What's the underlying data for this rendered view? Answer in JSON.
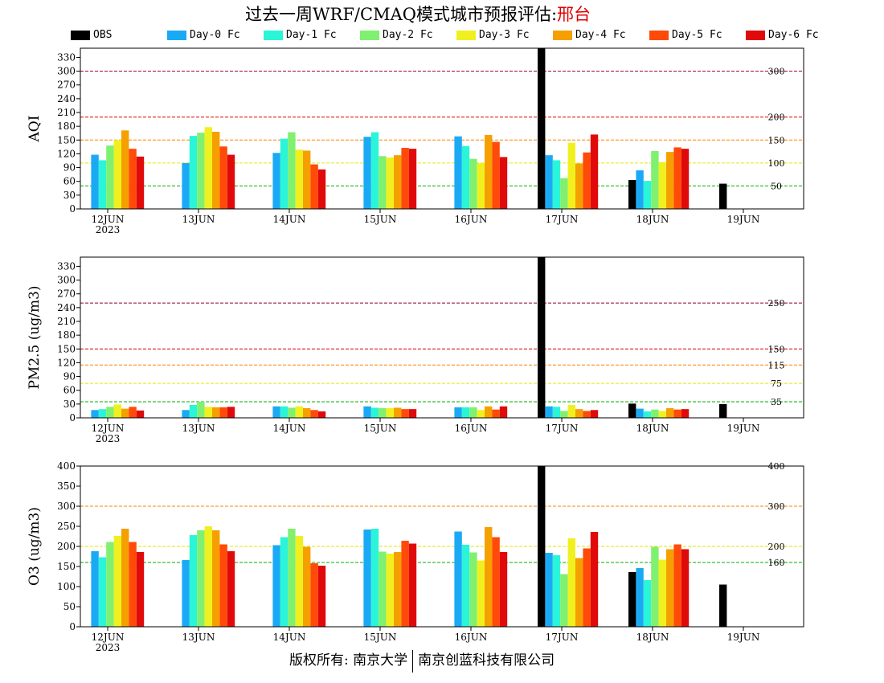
{
  "title": {
    "prefix": "过去一周WRF/CMAQ模式城市预报评估:",
    "city": "邢台"
  },
  "legend": [
    {
      "label": "OBS",
      "color": "#000000"
    },
    {
      "label": "Day-0 Fc",
      "color": "#1aaaf5"
    },
    {
      "label": "Day-1 Fc",
      "color": "#2af5d8"
    },
    {
      "label": "Day-2 Fc",
      "color": "#80f070"
    },
    {
      "label": "Day-3 Fc",
      "color": "#f0f020"
    },
    {
      "label": "Day-4 Fc",
      "color": "#f5a000"
    },
    {
      "label": "Day-5 Fc",
      "color": "#ff4a0a"
    },
    {
      "label": "Day-6 Fc",
      "color": "#e00a0a"
    }
  ],
  "footer": {
    "left": "版权所有: 南京大学",
    "right": "南京创蓝科技有限公司"
  },
  "chart_data": [
    {
      "type": "bar",
      "ylabel": "AQI",
      "ylim": [
        0,
        350
      ],
      "yticks": [
        0,
        30,
        60,
        90,
        120,
        150,
        180,
        210,
        240,
        270,
        300,
        330
      ],
      "x_dates": [
        "12JUN",
        "13JUN",
        "14JUN",
        "15JUN",
        "16JUN",
        "17JUN",
        "18JUN",
        "19JUN"
      ],
      "year": "2023",
      "thresholds": [
        {
          "value": 50,
          "label": "50",
          "color": "#00b000"
        },
        {
          "value": 100,
          "label": "100",
          "color": "#e6e600"
        },
        {
          "value": 150,
          "label": "150",
          "color": "#ff8000"
        },
        {
          "value": 200,
          "label": "200",
          "color": "#e00000"
        },
        {
          "value": 300,
          "label": "300",
          "color": "#900030"
        }
      ],
      "series": [
        {
          "name": "OBS",
          "values": [
            null,
            null,
            null,
            null,
            null,
            350,
            63,
            55
          ]
        },
        {
          "name": "Day-0 Fc",
          "values": [
            118,
            100,
            122,
            157,
            158,
            117,
            84,
            null
          ]
        },
        {
          "name": "Day-1 Fc",
          "values": [
            106,
            159,
            153,
            167,
            137,
            106,
            61,
            null
          ]
        },
        {
          "name": "Day-2 Fc",
          "values": [
            138,
            166,
            167,
            115,
            109,
            67,
            126,
            null
          ]
        },
        {
          "name": "Day-3 Fc",
          "values": [
            150,
            178,
            129,
            112,
            100,
            144,
            102,
            null
          ]
        },
        {
          "name": "Day-4 Fc",
          "values": [
            171,
            168,
            127,
            117,
            161,
            99,
            124,
            null
          ]
        },
        {
          "name": "Day-5 Fc",
          "values": [
            131,
            136,
            97,
            133,
            146,
            123,
            134,
            null
          ]
        },
        {
          "name": "Day-6 Fc",
          "values": [
            114,
            118,
            86,
            131,
            113,
            162,
            131,
            null
          ]
        }
      ]
    },
    {
      "type": "bar",
      "ylabel": "PM2.5 (ug/m3)",
      "ylim": [
        0,
        350
      ],
      "yticks": [
        0,
        30,
        60,
        90,
        120,
        150,
        180,
        210,
        240,
        270,
        300,
        330
      ],
      "x_dates": [
        "12JUN",
        "13JUN",
        "14JUN",
        "15JUN",
        "16JUN",
        "17JUN",
        "18JUN",
        "19JUN"
      ],
      "year": "2023",
      "thresholds": [
        {
          "value": 35,
          "label": "35",
          "color": "#00b000"
        },
        {
          "value": 75,
          "label": "75",
          "color": "#e6e600"
        },
        {
          "value": 115,
          "label": "115",
          "color": "#ff8000"
        },
        {
          "value": 150,
          "label": "150",
          "color": "#e00000"
        },
        {
          "value": 250,
          "label": "250",
          "color": "#900030"
        }
      ],
      "series": [
        {
          "name": "OBS",
          "values": [
            null,
            null,
            null,
            null,
            null,
            350,
            31,
            30
          ]
        },
        {
          "name": "Day-0 Fc",
          "values": [
            17,
            17,
            25,
            25,
            23,
            25,
            20,
            null
          ]
        },
        {
          "name": "Day-1 Fc",
          "values": [
            19,
            28,
            25,
            22,
            23,
            24,
            14,
            null
          ]
        },
        {
          "name": "Day-2 Fc",
          "values": [
            24,
            35,
            22,
            21,
            23,
            15,
            18,
            null
          ]
        },
        {
          "name": "Day-3 Fc",
          "values": [
            29,
            24,
            25,
            21,
            17,
            28,
            15,
            null
          ]
        },
        {
          "name": "Day-4 Fc",
          "values": [
            20,
            23,
            21,
            22,
            25,
            19,
            21,
            null
          ]
        },
        {
          "name": "Day-5 Fc",
          "values": [
            24,
            23,
            17,
            19,
            18,
            15,
            18,
            null
          ]
        },
        {
          "name": "Day-6 Fc",
          "values": [
            16,
            24,
            14,
            19,
            25,
            17,
            19,
            null
          ]
        }
      ]
    },
    {
      "type": "bar",
      "ylabel": "O3 (ug/m3)",
      "ylim": [
        0,
        400
      ],
      "yticks": [
        0,
        50,
        100,
        150,
        200,
        250,
        300,
        350,
        400
      ],
      "x_dates": [
        "12JUN",
        "13JUN",
        "14JUN",
        "15JUN",
        "16JUN",
        "17JUN",
        "18JUN",
        "19JUN"
      ],
      "year": "2023",
      "thresholds": [
        {
          "value": 160,
          "label": "160",
          "color": "#00b000"
        },
        {
          "value": 200,
          "label": "200",
          "color": "#e6e600"
        },
        {
          "value": 300,
          "label": "300",
          "color": "#ff8000"
        },
        {
          "value": 400,
          "label": "400",
          "color": "#e00000"
        }
      ],
      "series": [
        {
          "name": "OBS",
          "values": [
            null,
            null,
            null,
            null,
            null,
            400,
            136,
            105
          ]
        },
        {
          "name": "Day-0 Fc",
          "values": [
            188,
            166,
            203,
            242,
            237,
            184,
            146,
            null
          ]
        },
        {
          "name": "Day-1 Fc",
          "values": [
            173,
            228,
            223,
            244,
            204,
            178,
            116,
            null
          ]
        },
        {
          "name": "Day-2 Fc",
          "values": [
            211,
            240,
            244,
            187,
            185,
            131,
            199,
            null
          ]
        },
        {
          "name": "Day-3 Fc",
          "values": [
            226,
            250,
            226,
            182,
            165,
            220,
            167,
            null
          ]
        },
        {
          "name": "Day-4 Fc",
          "values": [
            244,
            240,
            199,
            186,
            248,
            171,
            193,
            null
          ]
        },
        {
          "name": "Day-5 Fc",
          "values": [
            211,
            205,
            158,
            214,
            223,
            195,
            205,
            null
          ]
        },
        {
          "name": "Day-6 Fc",
          "values": [
            186,
            188,
            152,
            207,
            186,
            236,
            193,
            null
          ]
        }
      ]
    }
  ]
}
